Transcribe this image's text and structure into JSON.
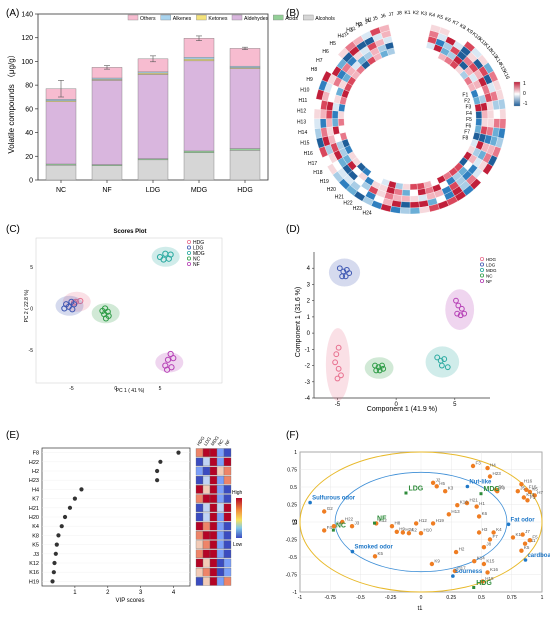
{
  "panel_labels": {
    "a": "(A)",
    "b": "(B)",
    "c": "(C)",
    "d": "(D)",
    "e": "(E)",
    "f": "(F)"
  },
  "colors": {
    "Others": "#f7bcd0",
    "Alkenes": "#a9d4ef",
    "Ketones": "#f3e27a",
    "Aldehydes": "#d9b6de",
    "Acids": "#93cf97",
    "Alcohols": "#d6d6d6",
    "HDG": "#e8708f",
    "LDG": "#3e57b2",
    "MDG": "#29a9a0",
    "NC": "#2e9c46",
    "NF": "#b640b6"
  },
  "chart_data": [
    {
      "id": "A",
      "type": "bar",
      "stacked": true,
      "categories": [
        "NC",
        "NF",
        "LDG",
        "MDG",
        "HDG"
      ],
      "ylabel": "Volatile compounds （μg/g）",
      "ylim": [
        0,
        140
      ],
      "yticks": [
        "0",
        "20",
        "40",
        "60",
        "80",
        "100",
        "120",
        "140"
      ],
      "legend_position": "top",
      "series": [
        {
          "name": "Alcohols",
          "values": [
            12.5,
            12,
            17,
            23,
            25
          ]
        },
        {
          "name": "Acids",
          "values": [
            1,
            1,
            1,
            1.5,
            1.5
          ]
        },
        {
          "name": "Aldehydes",
          "values": [
            52.5,
            71,
            71,
            76,
            67.5
          ]
        },
        {
          "name": "Ketones",
          "values": [
            0.8,
            0.8,
            1.2,
            1.5,
            0.8
          ]
        },
        {
          "name": "Alkenes",
          "values": [
            1.2,
            1.2,
            1,
            1.5,
            1.2
          ]
        },
        {
          "name": "Others",
          "values": [
            9,
            9,
            11,
            16,
            15
          ]
        }
      ],
      "error": [
        7,
        1.5,
        2.5,
        2,
        1
      ],
      "legend": [
        "Others",
        "Alkenes",
        "Ketones",
        "Aldehydes",
        "Acids",
        "Alcohols"
      ]
    },
    {
      "id": "B",
      "type": "heatmap",
      "layout": "circular",
      "ring1_labels": [
        "J1",
        "J2",
        "J3",
        "J4",
        "J5",
        "J6",
        "J7",
        "J8",
        "K1",
        "K2",
        "K3",
        "K4",
        "K5",
        "K6",
        "K7",
        "K8",
        "K9",
        "K10",
        "K11",
        "K12",
        "K13",
        "K14",
        "K15",
        "K16"
      ],
      "ring2_labels": [
        "F1",
        "F2",
        "F3",
        "F4",
        "F5",
        "F6",
        "F7",
        "F8",
        "H1",
        "H2",
        "H3",
        "H4",
        "H5",
        "H6",
        "H7",
        "H8",
        "H9",
        "H10",
        "H11",
        "H12",
        "H13",
        "H14",
        "H15",
        "H16",
        "H17",
        "H18",
        "H19",
        "H20",
        "H21",
        "H22",
        "H23",
        "H24"
      ],
      "ring2_inner_labels": [
        "H24",
        "H23",
        "H22",
        "H21",
        "H20",
        "H19",
        "H18",
        "H17",
        "H16",
        "H15",
        "H14",
        "H13",
        "H12",
        "H11",
        "H10",
        "H9",
        "H8",
        "H7",
        "H6",
        "H5",
        "H4",
        "H3",
        "H2",
        "H1"
      ],
      "colorbar_ticks": [
        "1",
        "0",
        "-1"
      ]
    },
    {
      "id": "C",
      "type": "scatter",
      "title": "Scores Plot",
      "xlabel": "PC 1 ( 41 %)",
      "ylabel": "PC 2 ( 22.8 %)",
      "xticks": [
        -5,
        0,
        5
      ],
      "yticks": [
        5,
        0,
        -5
      ],
      "xlim": [
        -9,
        12
      ],
      "ylim": [
        -9,
        8.5
      ],
      "legend": [
        "HDG",
        "LDG",
        "MDG",
        "NC",
        "NF"
      ],
      "series": [
        {
          "name": "HDG",
          "points": [
            [
              -4.5,
              0.8
            ],
            [
              -4.0,
              0.9
            ],
            [
              -4.7,
              0.7
            ]
          ]
        },
        {
          "name": "LDG",
          "points": [
            [
              -5.6,
              0.5
            ],
            [
              -5.0,
              0.8
            ],
            [
              -5.3,
              0.2
            ],
            [
              -4.7,
              0.5
            ],
            [
              -5.8,
              0.0
            ],
            [
              -4.9,
              -0.1
            ]
          ]
        },
        {
          "name": "MDG",
          "points": [
            [
              5.0,
              6.2
            ],
            [
              5.6,
              6.6
            ],
            [
              6.2,
              6.5
            ],
            [
              5.4,
              5.9
            ],
            [
              6.0,
              6.0
            ]
          ]
        },
        {
          "name": "NC",
          "points": [
            [
              -1.2,
              0.0
            ],
            [
              -1.5,
              -0.3
            ],
            [
              -0.9,
              -0.4
            ],
            [
              -1.3,
              -0.7
            ],
            [
              -0.8,
              -0.9
            ],
            [
              -1.1,
              -1.2
            ]
          ]
        },
        {
          "name": "NF",
          "points": [
            [
              6.2,
              -5.5
            ],
            [
              6.5,
              -6.0
            ],
            [
              5.9,
              -6.2
            ],
            [
              5.6,
              -6.9
            ],
            [
              6.3,
              -7.1
            ],
            [
              5.8,
              -7.4
            ]
          ]
        }
      ]
    },
    {
      "id": "D",
      "type": "scatter",
      "xlabel": "Component 1 (41.9 %)",
      "ylabel": "Component 1 (31.6 %)",
      "xticks": [
        -5,
        0,
        5
      ],
      "yticks": [
        4,
        3,
        2,
        1,
        0,
        -1,
        -2,
        -3,
        -4
      ],
      "xlim": [
        -7,
        8
      ],
      "ylim": [
        -4,
        5
      ],
      "legend": [
        "HDG",
        "LDG",
        "MDG",
        "NC",
        "NF"
      ],
      "series": [
        {
          "name": "HDG",
          "points": [
            [
              -4.9,
              -0.9
            ],
            [
              -5.1,
              -1.3
            ],
            [
              -5.2,
              -1.8
            ],
            [
              -4.9,
              -2.2
            ],
            [
              -4.7,
              -2.6
            ],
            [
              -5.0,
              -2.8
            ]
          ]
        },
        {
          "name": "LDG",
          "points": [
            [
              -4.8,
              4.0
            ],
            [
              -4.5,
              3.8
            ],
            [
              -4.2,
              3.9
            ],
            [
              -4.6,
              3.5
            ],
            [
              -4.3,
              3.5
            ],
            [
              -4.0,
              3.7
            ]
          ]
        },
        {
          "name": "MDG",
          "points": [
            [
              3.5,
              -1.5
            ],
            [
              3.8,
              -1.7
            ],
            [
              4.1,
              -1.6
            ],
            [
              3.9,
              -2.0
            ],
            [
              4.4,
              -2.1
            ]
          ]
        },
        {
          "name": "NC",
          "points": [
            [
              -1.8,
              -2.0
            ],
            [
              -1.5,
              -2.1
            ],
            [
              -1.2,
              -2.0
            ],
            [
              -1.7,
              -2.3
            ],
            [
              -1.4,
              -2.3
            ],
            [
              -1.1,
              -2.2
            ]
          ]
        },
        {
          "name": "NF",
          "points": [
            [
              5.1,
              2.0
            ],
            [
              5.3,
              1.7
            ],
            [
              5.6,
              1.5
            ],
            [
              5.2,
              1.2
            ],
            [
              5.5,
              1.1
            ],
            [
              5.8,
              1.2
            ]
          ]
        }
      ]
    },
    {
      "id": "E",
      "type": "scatter",
      "xlabel": "VIP scores",
      "xticks": [
        1,
        2,
        3,
        4
      ],
      "xlim": [
        0,
        4.5
      ],
      "categories": [
        "F8",
        "H22",
        "H2",
        "H23",
        "H4",
        "K7",
        "H21",
        "H20",
        "K4",
        "K8",
        "K5",
        "J3",
        "K12",
        "K16",
        "H19"
      ],
      "values": [
        4.15,
        3.6,
        3.5,
        3.5,
        1.2,
        1.0,
        0.85,
        0.7,
        0.6,
        0.5,
        0.45,
        0.42,
        0.38,
        0.36,
        0.32
      ],
      "heat_columns": [
        "HDG",
        "LDG",
        "MDG",
        "NC",
        "NF"
      ],
      "heat_levels": [
        [
          0.8,
          0.9,
          1.0,
          0.1,
          0.0
        ],
        [
          0.0,
          0.3,
          1.0,
          0.2,
          0.9
        ],
        [
          0.2,
          0.0,
          1.0,
          0.5,
          0.8
        ],
        [
          0.0,
          0.4,
          1.0,
          0.1,
          0.8
        ],
        [
          0.9,
          0.5,
          1.0,
          0.2,
          0.0
        ],
        [
          0.8,
          0.9,
          1.0,
          0.1,
          0.0
        ],
        [
          0.0,
          0.3,
          0.9,
          0.3,
          1.0
        ],
        [
          0.0,
          0.4,
          0.9,
          0.2,
          1.0
        ],
        [
          0.9,
          0.7,
          1.0,
          0.2,
          0.0
        ],
        [
          0.8,
          0.9,
          1.0,
          0.1,
          0.0
        ],
        [
          0.5,
          0.8,
          1.0,
          0.2,
          0.0
        ],
        [
          0.7,
          0.9,
          1.0,
          0.1,
          0.0
        ],
        [
          0.9,
          0.6,
          1.0,
          0.0,
          0.2
        ],
        [
          0.6,
          0.8,
          1.0,
          0.0,
          0.1
        ],
        [
          0.0,
          0.5,
          1.0,
          0.2,
          0.7
        ]
      ],
      "colorbar": {
        "high": "High",
        "low": "Low"
      }
    },
    {
      "id": "F",
      "type": "scatter",
      "subtype": "biplot",
      "xlabel": "t1",
      "ylabel": "t3",
      "xticks": [
        "-1",
        "-0.75",
        "-0.5",
        "-0.25",
        "0",
        "0.25",
        "0.5",
        "0.75",
        "1"
      ],
      "yticks": [
        "1",
        "0.75",
        "0.5",
        "0.25",
        "0",
        "-0.25",
        "-0.5",
        "-0.75",
        "-1"
      ],
      "xlim": [
        -1,
        1
      ],
      "ylim": [
        -1,
        1
      ],
      "groups": [
        {
          "name": "LDG",
          "x": -0.12,
          "y": 0.45
        },
        {
          "name": "NF",
          "x": -0.38,
          "y": 0.02
        },
        {
          "name": "NC",
          "x": -0.72,
          "y": -0.08
        },
        {
          "name": "MDG",
          "x": 0.5,
          "y": 0.44
        },
        {
          "name": "HDG",
          "x": 0.44,
          "y": -0.9
        }
      ],
      "descriptors": [
        {
          "name": "Sulfurous odor",
          "x": -0.9,
          "y": 0.32
        },
        {
          "name": "Smoked odor",
          "x": -0.55,
          "y": -0.38
        },
        {
          "name": "Nut-like",
          "x": 0.4,
          "y": 0.55
        },
        {
          "name": "Fat odor",
          "x": 0.74,
          "y": 0.01
        },
        {
          "name": "Sourness",
          "x": 0.28,
          "y": -0.73
        },
        {
          "name": "cardboardy",
          "x": 0.88,
          "y": -0.5
        }
      ],
      "points": [
        {
          "label": "F3",
          "x": 0.43,
          "y": 0.8
        },
        {
          "label": "H4",
          "x": 0.55,
          "y": 0.77
        },
        {
          "label": "H23",
          "x": 0.57,
          "y": 0.65
        },
        {
          "label": "J2",
          "x": 0.1,
          "y": 0.56
        },
        {
          "label": "H5",
          "x": 0.13,
          "y": 0.51
        },
        {
          "label": "G2",
          "x": -0.8,
          "y": 0.15
        },
        {
          "label": "K3",
          "x": 0.2,
          "y": 0.44
        },
        {
          "label": "F6",
          "x": 0.62,
          "y": 0.46
        },
        {
          "label": "H16",
          "x": 0.83,
          "y": 0.54
        },
        {
          "label": "F15",
          "x": 0.87,
          "y": 0.46
        },
        {
          "label": "F9",
          "x": 0.63,
          "y": 0.44
        },
        {
          "label": "J5",
          "x": 0.8,
          "y": 0.44
        },
        {
          "label": "K5",
          "x": 0.9,
          "y": 0.43
        },
        {
          "label": "H7",
          "x": 0.94,
          "y": 0.38
        },
        {
          "label": "K13",
          "x": 0.85,
          "y": 0.35
        },
        {
          "label": "F1",
          "x": 0.88,
          "y": 0.31
        },
        {
          "label": "H21",
          "x": 0.38,
          "y": 0.27
        },
        {
          "label": "K16",
          "x": 0.3,
          "y": 0.24
        },
        {
          "label": "H1",
          "x": 0.46,
          "y": 0.22
        },
        {
          "label": "K6",
          "x": 0.48,
          "y": 0.08
        },
        {
          "label": "H13",
          "x": 0.23,
          "y": 0.11
        },
        {
          "label": "H19",
          "x": 0.1,
          "y": -0.02
        },
        {
          "label": "K12",
          "x": -0.37,
          "y": -0.02
        },
        {
          "label": "H12",
          "x": -0.04,
          "y": -0.02
        },
        {
          "label": "H8",
          "x": -0.24,
          "y": -0.06
        },
        {
          "label": "H22",
          "x": -0.65,
          "y": 0.0
        },
        {
          "label": "J3",
          "x": -0.57,
          "y": -0.06
        },
        {
          "label": "J4",
          "x": -0.72,
          "y": -0.06
        },
        {
          "label": "H9",
          "x": -0.2,
          "y": -0.14
        },
        {
          "label": "H24",
          "x": -0.15,
          "y": -0.15
        },
        {
          "label": "F4",
          "x": -0.8,
          "y": -0.12
        },
        {
          "label": "K2",
          "x": -0.1,
          "y": -0.16
        },
        {
          "label": "H10",
          "x": 0.0,
          "y": -0.16
        },
        {
          "label": "H3",
          "x": 0.48,
          "y": -0.15
        },
        {
          "label": "K4",
          "x": 0.6,
          "y": -0.15
        },
        {
          "label": "F7",
          "x": 0.57,
          "y": -0.25
        },
        {
          "label": "J8",
          "x": 0.52,
          "y": -0.36
        },
        {
          "label": "K11",
          "x": 0.76,
          "y": -0.22
        },
        {
          "label": "J7",
          "x": 0.84,
          "y": -0.18
        },
        {
          "label": "H11",
          "x": 0.86,
          "y": -0.31
        },
        {
          "label": "F5",
          "x": 0.9,
          "y": -0.26
        },
        {
          "label": "K5b",
          "x": 0.83,
          "y": -0.41
        },
        {
          "label": "H2",
          "x": 0.29,
          "y": -0.43
        },
        {
          "label": "K5c",
          "x": -0.38,
          "y": -0.49
        },
        {
          "label": "K9",
          "x": 0.09,
          "y": -0.6
        },
        {
          "label": "K14",
          "x": 0.44,
          "y": -0.56
        },
        {
          "label": "K15",
          "x": 0.52,
          "y": -0.6
        },
        {
          "label": "H17",
          "x": 0.28,
          "y": -0.7
        },
        {
          "label": "K16b",
          "x": 0.55,
          "y": -0.72
        },
        {
          "label": "H18",
          "x": 0.51,
          "y": -0.85
        }
      ]
    }
  ]
}
